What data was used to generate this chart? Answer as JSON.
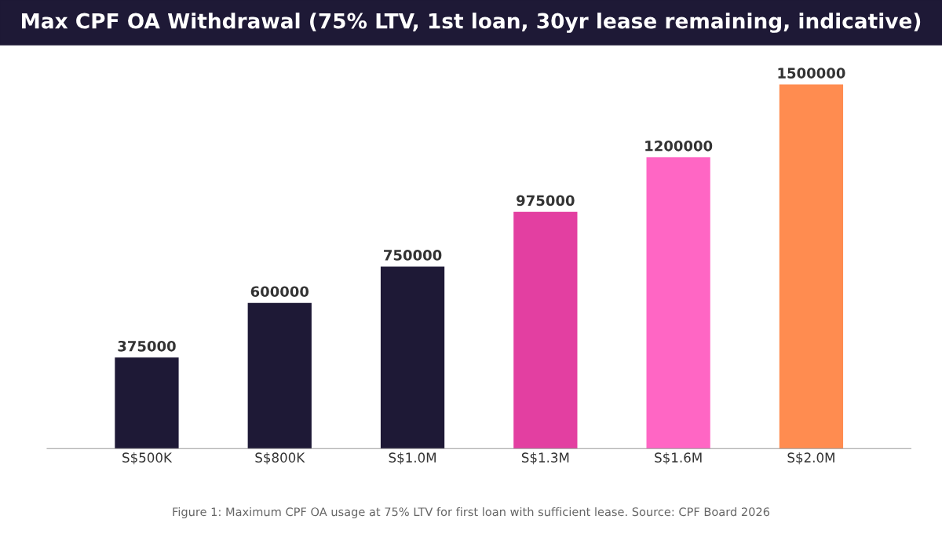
{
  "chart_data": {
    "type": "bar",
    "title": "Max CPF OA Withdrawal (75% LTV, 1st loan, 30yr lease remaining, indicative)",
    "categories": [
      "S$500K",
      "S$800K",
      "S$1.0M",
      "S$1.3M",
      "S$1.6M",
      "S$2.0M"
    ],
    "values": [
      375000,
      600000,
      750000,
      975000,
      1200000,
      1500000
    ],
    "colors": [
      "#1e1936",
      "#1e1936",
      "#1e1936",
      "#e33fa1",
      "#ff66c4",
      "#ff8c50"
    ],
    "data_labels": true,
    "grid": false,
    "legend": false,
    "tick_labels": "x",
    "annotations": [
      "Figure 1: Maximum CPF OA usage at 75% LTV for first loan with sufficient lease. Source: CPF Board 2026"
    ]
  }
}
